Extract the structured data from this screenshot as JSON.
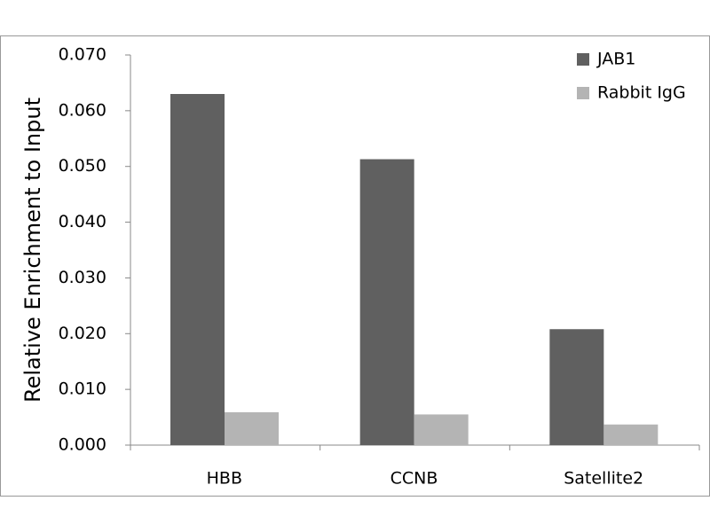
{
  "chart_data": {
    "type": "bar",
    "y_label": "Relative Enrichment to Input",
    "categories": [
      "HBB",
      "CCNB",
      "Satellite2"
    ],
    "series": [
      {
        "name": "JAB1",
        "color": "#606060",
        "values": [
          0.063,
          0.0513,
          0.0208
        ]
      },
      {
        "name": "Rabbit IgG",
        "color": "#b4b4b4",
        "values": [
          0.0059,
          0.0055,
          0.0037
        ]
      }
    ],
    "ylim": [
      0,
      0.07
    ],
    "yticks": [
      {
        "value": 0,
        "label": "0.000"
      },
      {
        "value": 0.01,
        "label": "0.010"
      },
      {
        "value": 0.02,
        "label": "0.020"
      },
      {
        "value": 0.03,
        "label": "0.030"
      },
      {
        "value": 0.04,
        "label": "0.040"
      },
      {
        "value": 0.05,
        "label": "0.050"
      },
      {
        "value": 0.06,
        "label": "0.060"
      },
      {
        "value": 0.07,
        "label": "0.070"
      }
    ]
  }
}
